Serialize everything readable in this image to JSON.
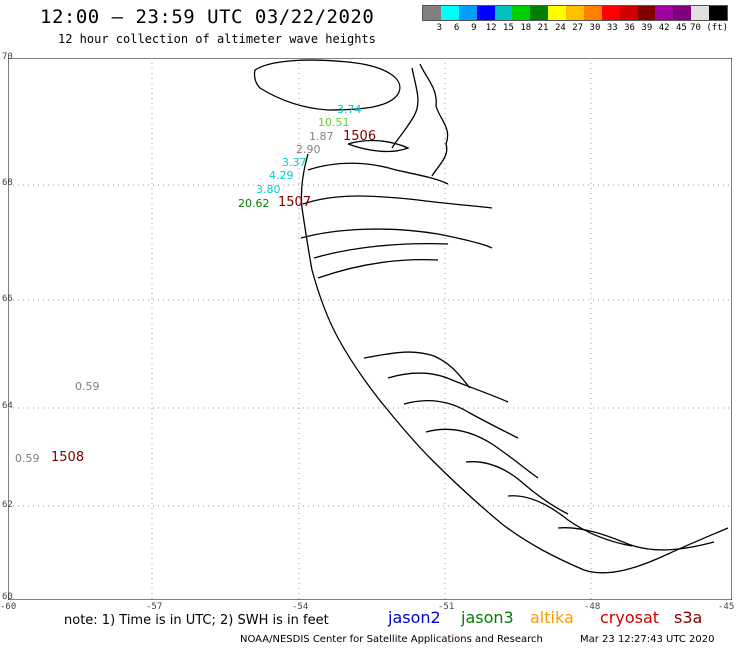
{
  "title": "12:00 – 23:59 UTC 03/22/2020",
  "subtitle": "12 hour collection of altimeter wave heights",
  "legend": {
    "colors": [
      "#808080",
      "#00ffff",
      "#00a0ff",
      "#0000ff",
      "#00c0c0",
      "#00d000",
      "#008000",
      "#ffff00",
      "#ffc000",
      "#ff8000",
      "#ff0000",
      "#d00000",
      "#800000",
      "#a000a0",
      "#800080",
      "#e0e0e0",
      "#000000"
    ],
    "labels": [
      "3",
      "6",
      "9",
      "12",
      "15",
      "18",
      "21",
      "24",
      "27",
      "30",
      "33",
      "36",
      "39",
      "42",
      "45",
      "70 (ft)"
    ]
  },
  "axes": {
    "y_labels": [
      "70",
      "68",
      "66",
      "64",
      "62",
      "60"
    ],
    "x_labels": [
      "-60",
      "-57",
      "-54",
      "-51",
      "-48",
      "-45"
    ]
  },
  "observations": [
    {
      "text": "3.74",
      "color": "#00d0d0"
    },
    {
      "text": "10.51",
      "color": "#66cc33"
    },
    {
      "text": "1.87",
      "color": "#808080"
    },
    {
      "text": "1506",
      "color": "#800000"
    },
    {
      "text": "2.90",
      "color": "#808080"
    },
    {
      "text": "3.37",
      "color": "#00d0d0"
    },
    {
      "text": "4.29",
      "color": "#00d0d0"
    },
    {
      "text": "3.80",
      "color": "#00d0d0"
    },
    {
      "text": "20.62",
      "color": "#008000"
    },
    {
      "text": "1507",
      "color": "#800000"
    },
    {
      "text": "0.59",
      "color": "#808080"
    },
    {
      "text": "0.59",
      "color": "#808080"
    },
    {
      "text": "1508",
      "color": "#800000"
    }
  ],
  "note": "note:  1) Time is in UTC; 2) SWH is in feet",
  "satellites": [
    {
      "name": "jason2",
      "color": "#0000cc"
    },
    {
      "name": "jason3",
      "color": "#008000"
    },
    {
      "name": "altika",
      "color": "#ff9900"
    },
    {
      "name": "cryosat",
      "color": "#cc0000"
    },
    {
      "name": "s3a",
      "color": "#800000"
    }
  ],
  "footer_left": "NOAA/NESDIS Center for Satellite Applications and Research",
  "footer_right": "Mar 23 12:27:43 UTC 2020"
}
